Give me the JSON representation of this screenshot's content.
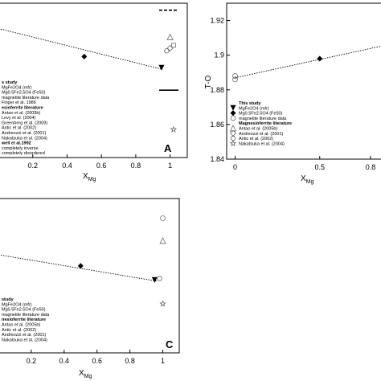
{
  "panels": {
    "A": {
      "letter": "A",
      "xlabel_main": "X",
      "xlabel_sub": "Mg",
      "xticks": [
        "0.2",
        "0.4",
        "0.6",
        "0.8",
        "1"
      ],
      "legend": [
        {
          "text": "s study",
          "style": "head"
        },
        {
          "text": "MgFe2O4 (mfr)",
          "style": "text"
        },
        {
          "text": "Mg0.5Fe2.5O4 (Fe50)",
          "style": "text"
        },
        {
          "text": "magnetite literature data",
          "style": "text"
        },
        {
          "text": "Finger et al. 1986",
          "style": "text"
        },
        {
          "text": "esioferrite literature",
          "style": "head"
        },
        {
          "text": "Antao et al. (2005b)",
          "style": "text"
        },
        {
          "text": "Levy et al. (2004)",
          "style": "text"
        },
        {
          "text": "Greenberg et al. (2009)",
          "style": "text"
        },
        {
          "text": "Antic et al. (2002)",
          "style": "text"
        },
        {
          "text": "Andreozzi et al. (2001)",
          "style": "text"
        },
        {
          "text": "Nakatsuka et al. (2004)",
          "style": "text"
        },
        {
          "text": "well et al.1992",
          "style": "head"
        },
        {
          "text": "completely inverse",
          "style": "text"
        },
        {
          "text": "completely disordered",
          "style": "text"
        }
      ]
    },
    "B": {
      "ylabel": "T-O",
      "xlabel_main": "X",
      "xlabel_sub": "Mg",
      "xticks": [
        "0",
        "0.5",
        "0.8"
      ],
      "yticks": [
        "1.84",
        "1.86",
        "1.88",
        "1.9",
        "1.92"
      ],
      "legend": [
        {
          "text": "This study",
          "style": "head"
        },
        {
          "text": "MgFe2O4 (mfr)",
          "style": "text"
        },
        {
          "text": "Mg0.5Fe2.5O4 (Fe50)",
          "style": "text"
        },
        {
          "text": "magnetite literature data",
          "style": "text"
        },
        {
          "text": "Magnesioferrite literature",
          "style": "head"
        },
        {
          "text": "Antao et al. (2005b)",
          "style": "text"
        },
        {
          "text": "Andreozzi et al. (2001)",
          "style": "text"
        },
        {
          "text": "Antic et al. (2002)",
          "style": "text"
        },
        {
          "text": "Nakatsuka et al. (2004)",
          "style": "text"
        }
      ]
    },
    "C": {
      "letter": "C",
      "xlabel_main": "X",
      "xlabel_sub": "Mg",
      "xticks": [
        "0.2",
        "0.4",
        "0.6",
        "0.8",
        "1"
      ],
      "legend": [
        {
          "text": "study",
          "style": "head"
        },
        {
          "text": "MgFe2O4 (mfr)",
          "style": "text"
        },
        {
          "text": "Mg0.5Fe2.5O4 (Fe50)",
          "style": "text"
        },
        {
          "text": "magnetite literature data",
          "style": "text"
        },
        {
          "text": "nesioferrite literature",
          "style": "head"
        },
        {
          "text": "Antao et al. (2005b)",
          "style": "text"
        },
        {
          "text": "Antic et al. (2002)",
          "style": "text"
        },
        {
          "text": "Andreozzi et al. (2001)",
          "style": "text"
        },
        {
          "text": "Nakatsuka et al. (2004)",
          "style": "text"
        }
      ]
    }
  },
  "chart_data": [
    {
      "type": "scatter",
      "panel": "A",
      "xlabel": "XMg",
      "xlim": [
        0,
        1.1
      ],
      "series": [
        {
          "name": "Mg0.5Fe2.5O4 (Fe50)",
          "marker": "diamond",
          "points": [
            [
              0.5,
              0.72
            ]
          ]
        },
        {
          "name": "MgFe2O4 (mfr)",
          "marker": "triangle-down",
          "points": [
            [
              0.95,
              0.64
            ]
          ]
        },
        {
          "name": "Antao et al. (2005b)",
          "marker": "triangle-up-open",
          "points": [
            [
              1.0,
              0.86
            ]
          ]
        },
        {
          "name": "Levy et al. (2004)",
          "marker": "square-open",
          "points": [
            [
              1.02,
              0.8
            ]
          ]
        },
        {
          "name": "Andreozzi et al. (2001)",
          "marker": "diamond-open",
          "points": [
            [
              1.0,
              0.78
            ]
          ]
        },
        {
          "name": "Antic et al. (2002)",
          "marker": "hexagon-open",
          "points": [
            [
              0.98,
              0.76
            ]
          ]
        },
        {
          "name": "Nakatsuka et al. (2004)",
          "marker": "star-open",
          "points": [
            [
              1.02,
              0.2
            ]
          ]
        }
      ],
      "fit_line": {
        "x": [
          0.0,
          0.95
        ],
        "y": [
          0.92,
          0.63
        ]
      },
      "reference_lines": [
        {
          "name": "completely inverse",
          "style": "solid",
          "y": 0.48
        },
        {
          "name": "completely disordered",
          "style": "dashed",
          "y": 1.05
        }
      ]
    },
    {
      "type": "scatter",
      "panel": "B",
      "xlabel": "XMg",
      "ylabel": "T-O",
      "xlim": [
        -0.05,
        0.9
      ],
      "ylim": [
        1.84,
        1.93
      ],
      "series": [
        {
          "name": "Mg0.5Fe2.5O4 (Fe50)",
          "marker": "diamond",
          "points": [
            [
              0.5,
              1.898
            ]
          ]
        },
        {
          "name": "magnetite literature data",
          "marker": "circle-open",
          "points": [
            [
              0.0,
              1.888
            ],
            [
              0.0,
              1.886
            ]
          ]
        }
      ],
      "fit_line": {
        "x": [
          0.0,
          0.9
        ],
        "y": [
          1.887,
          1.906
        ]
      }
    },
    {
      "type": "scatter",
      "panel": "C",
      "xlabel": "XMg",
      "xlim": [
        0,
        1.1
      ],
      "series": [
        {
          "name": "Mg0.5Fe2.5O4 (Fe50)",
          "marker": "diamond",
          "points": [
            [
              0.5,
              0.62
            ]
          ]
        },
        {
          "name": "MgFe2O4 (mfr)",
          "marker": "triangle-down",
          "points": [
            [
              0.95,
              0.52
            ]
          ]
        },
        {
          "name": "magnetite literature data",
          "marker": "circle-open",
          "points": [
            [
              1.0,
              0.96
            ]
          ]
        },
        {
          "name": "Antao et al. (2005b)",
          "marker": "triangle-up-open",
          "points": [
            [
              1.0,
              0.8
            ]
          ]
        },
        {
          "name": "Antic et al. (2002)",
          "marker": "hexagon-open",
          "points": [
            [
              0.98,
              0.53
            ]
          ]
        },
        {
          "name": "Nakatsuka et al. (2004)",
          "marker": "star-open",
          "points": [
            [
              1.0,
              0.35
            ]
          ]
        }
      ],
      "fit_line": {
        "x": [
          0.0,
          0.97
        ],
        "y": [
          0.7,
          0.51
        ]
      }
    }
  ]
}
